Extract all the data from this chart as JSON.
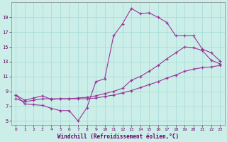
{
  "xlabel": "Windchill (Refroidissement éolien,°C)",
  "bg_color": "#cceee8",
  "grid_color": "#aaddda",
  "line_color": "#993399",
  "xlim": [
    -0.5,
    23.5
  ],
  "ylim": [
    4.5,
    21.0
  ],
  "xticks": [
    0,
    1,
    2,
    3,
    4,
    5,
    6,
    7,
    8,
    9,
    10,
    11,
    12,
    13,
    14,
    15,
    16,
    17,
    18,
    19,
    20,
    21,
    22,
    23
  ],
  "yticks": [
    5,
    7,
    9,
    11,
    13,
    15,
    17,
    19
  ],
  "line1_x": [
    0,
    1,
    2,
    3,
    4,
    5,
    6,
    7,
    8,
    9,
    10,
    11,
    12,
    13,
    14,
    15,
    16,
    17,
    18,
    19,
    20,
    21,
    22,
    23
  ],
  "line1_y": [
    8.5,
    7.3,
    7.2,
    7.1,
    6.7,
    6.4,
    6.4,
    5.0,
    6.8,
    10.3,
    10.7,
    16.5,
    18.1,
    20.2,
    19.5,
    19.6,
    19.0,
    18.3,
    16.5,
    16.5,
    16.5,
    14.7,
    14.2,
    13.1
  ],
  "line2_x": [
    0,
    1,
    2,
    3,
    4,
    5,
    6,
    7,
    8,
    9,
    10,
    11,
    12,
    13,
    14,
    15,
    16,
    17,
    18,
    19,
    20,
    21,
    22,
    23
  ],
  "line2_y": [
    8.5,
    7.8,
    8.1,
    8.4,
    7.9,
    8.0,
    8.0,
    8.1,
    8.2,
    8.4,
    8.7,
    9.0,
    9.4,
    10.5,
    11.0,
    11.7,
    12.5,
    13.4,
    14.2,
    15.0,
    14.9,
    14.5,
    13.2,
    12.7
  ],
  "line3_x": [
    0,
    1,
    2,
    3,
    4,
    5,
    6,
    7,
    8,
    9,
    10,
    11,
    12,
    13,
    14,
    15,
    16,
    17,
    18,
    19,
    20,
    21,
    22,
    23
  ],
  "line3_y": [
    8.0,
    7.6,
    7.8,
    8.0,
    8.0,
    8.0,
    8.0,
    8.0,
    8.0,
    8.1,
    8.3,
    8.5,
    8.8,
    9.1,
    9.5,
    9.9,
    10.3,
    10.8,
    11.2,
    11.7,
    12.0,
    12.2,
    12.3,
    12.5
  ]
}
